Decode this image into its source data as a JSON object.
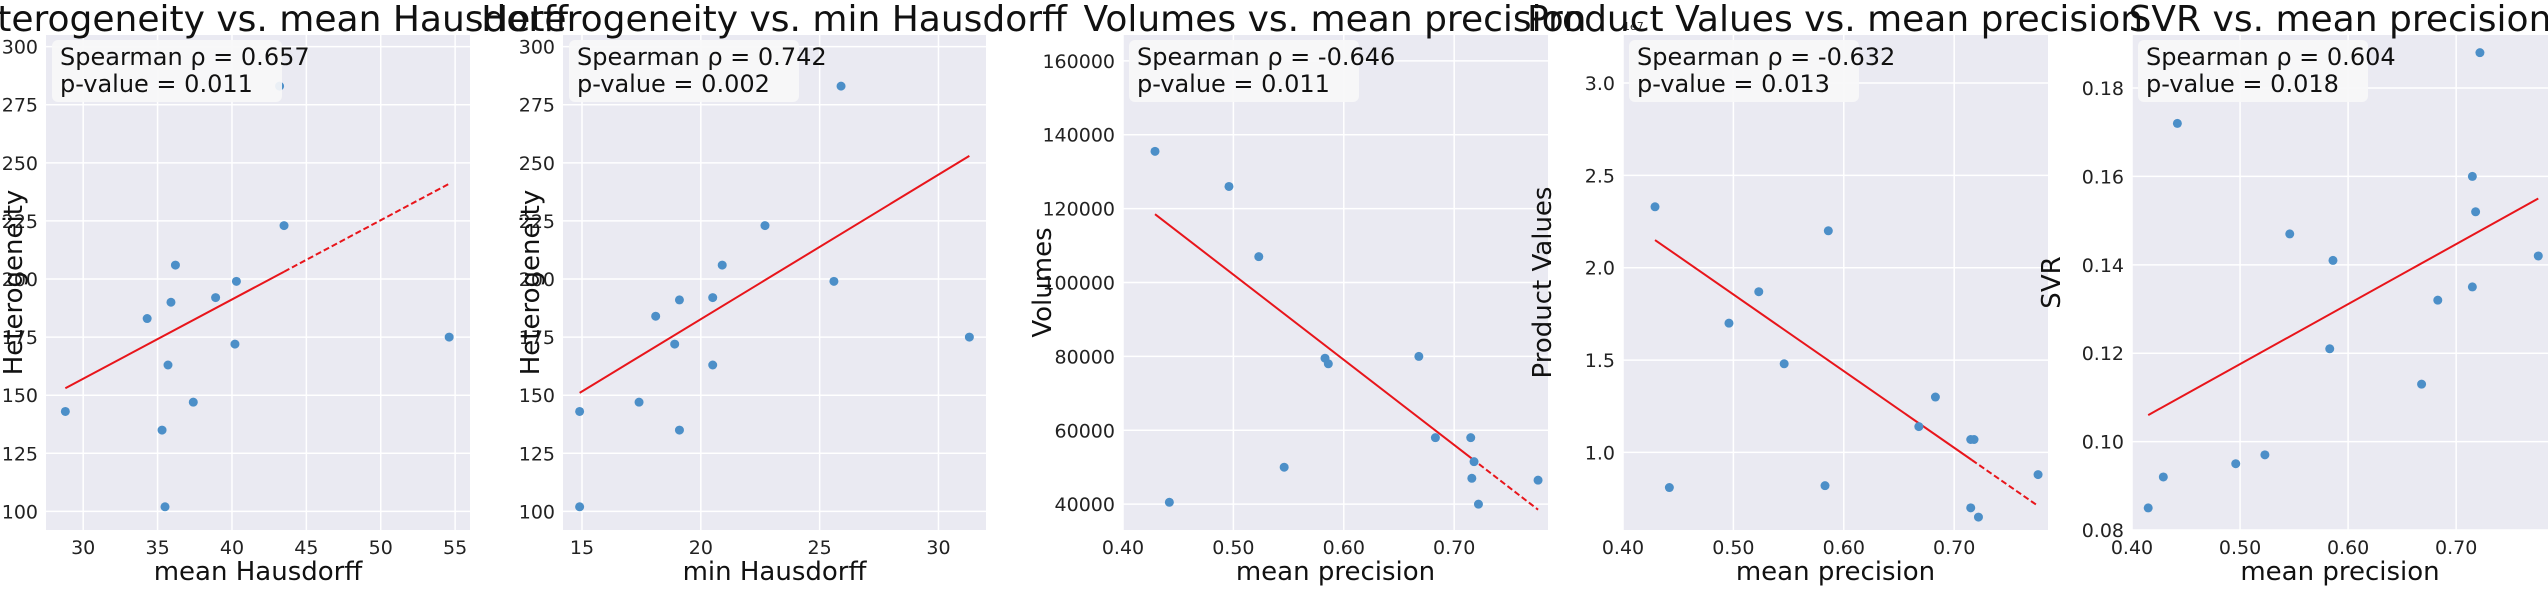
{
  "chart_data": [
    {
      "type": "scatter",
      "title": "Heterogeneity vs. mean Hausdorff",
      "xlabel": "mean Hausdorff",
      "ylabel": "Heterogeneity",
      "annotation": [
        "Spearman ρ = 0.657",
        "p-value = 0.011"
      ],
      "xlim": [
        27.5,
        56
      ],
      "ylim": [
        92,
        305
      ],
      "xticks": [
        30,
        35,
        40,
        45,
        50,
        55
      ],
      "yticks": [
        100,
        125,
        150,
        175,
        200,
        225,
        250,
        275,
        300
      ],
      "points": [
        [
          28.8,
          143
        ],
        [
          34.3,
          183
        ],
        [
          35.3,
          135
        ],
        [
          35.5,
          102
        ],
        [
          35.7,
          163
        ],
        [
          35.9,
          190
        ],
        [
          36.2,
          206
        ],
        [
          37.4,
          147
        ],
        [
          38.9,
          192
        ],
        [
          40.2,
          172
        ],
        [
          40.3,
          199
        ],
        [
          43.5,
          223
        ],
        [
          54.6,
          175
        ],
        [
          43.2,
          283
        ]
      ],
      "trend": [
        [
          28.8,
          153
        ],
        [
          54.6,
          241
        ]
      ],
      "trend_solid_to": 43.5
    },
    {
      "type": "scatter",
      "title": "Heterogeneity vs. min Hausdorff",
      "xlabel": "min Hausdorff",
      "ylabel": "Heterogeneity",
      "annotation": [
        "Spearman ρ = 0.742",
        "p-value = 0.002"
      ],
      "xlim": [
        14.2,
        32
      ],
      "ylim": [
        92,
        305
      ],
      "xticks": [
        15,
        20,
        25,
        30
      ],
      "yticks": [
        100,
        125,
        150,
        175,
        200,
        225,
        250,
        275,
        300
      ],
      "points": [
        [
          14.9,
          143
        ],
        [
          14.9,
          102
        ],
        [
          17.4,
          147
        ],
        [
          18.1,
          184
        ],
        [
          18.9,
          172
        ],
        [
          19.1,
          191
        ],
        [
          19.1,
          135
        ],
        [
          20.5,
          163
        ],
        [
          20.5,
          192
        ],
        [
          20.9,
          206
        ],
        [
          22.7,
          223
        ],
        [
          25.6,
          199
        ],
        [
          25.9,
          283
        ],
        [
          31.3,
          175
        ]
      ],
      "trend": [
        [
          14.9,
          151
        ],
        [
          31.3,
          253
        ]
      ],
      "trend_solid_to": 31.3
    },
    {
      "type": "scatter",
      "title": "Volumes vs. mean precision",
      "xlabel": "mean precision",
      "ylabel": "Volumes",
      "annotation": [
        "Spearman ρ = -0.646",
        "p-value = 0.011"
      ],
      "xlim": [
        0.4,
        0.785
      ],
      "ylim": [
        33000,
        167000
      ],
      "xticks": [
        0.4,
        0.5,
        0.6,
        0.7
      ],
      "yticks": [
        40000,
        60000,
        80000,
        100000,
        120000,
        140000,
        160000
      ],
      "points": [
        [
          0.429,
          135500
        ],
        [
          0.442,
          40500
        ],
        [
          0.496,
          126000
        ],
        [
          0.523,
          107000
        ],
        [
          0.546,
          50000
        ],
        [
          0.583,
          79500
        ],
        [
          0.586,
          78000
        ],
        [
          0.668,
          80000
        ],
        [
          0.683,
          58000
        ],
        [
          0.715,
          58000
        ],
        [
          0.716,
          47000
        ],
        [
          0.718,
          51500
        ],
        [
          0.722,
          40000
        ],
        [
          0.776,
          46500
        ]
      ],
      "trend": [
        [
          0.429,
          118500
        ],
        [
          0.776,
          38500
        ]
      ],
      "trend_solid_to": 0.716
    },
    {
      "type": "scatter",
      "title": "Product Values vs. mean precision",
      "xlabel": "mean precision",
      "ylabel": "Product Values",
      "exponent_label": "1e7",
      "annotation": [
        "Spearman ρ = -0.632",
        "p-value = 0.013"
      ],
      "xlim": [
        0.4,
        0.785
      ],
      "ylim": [
        0.58,
        3.26
      ],
      "xticks": [
        0.4,
        0.5,
        0.6,
        0.7
      ],
      "yticks": [
        1.0,
        1.5,
        2.0,
        2.5,
        3.0
      ],
      "points": [
        [
          0.429,
          2.33
        ],
        [
          0.442,
          0.81
        ],
        [
          0.496,
          1.7
        ],
        [
          0.523,
          1.87
        ],
        [
          0.546,
          1.48
        ],
        [
          0.583,
          0.82
        ],
        [
          0.586,
          2.2
        ],
        [
          0.668,
          1.14
        ],
        [
          0.683,
          1.3
        ],
        [
          0.715,
          1.07
        ],
        [
          0.718,
          1.07
        ],
        [
          0.715,
          0.7
        ],
        [
          0.722,
          0.65
        ],
        [
          0.776,
          0.88
        ]
      ],
      "trend": [
        [
          0.429,
          2.15
        ],
        [
          0.776,
          0.71
        ]
      ],
      "trend_solid_to": 0.716
    },
    {
      "type": "scatter",
      "title": "SVR vs. mean precision",
      "xlabel": "mean precision",
      "ylabel": "SVR",
      "annotation": [
        "Spearman ρ = 0.604",
        "p-value = 0.018"
      ],
      "xlim": [
        0.4,
        0.785
      ],
      "ylim": [
        0.08,
        0.192
      ],
      "xticks": [
        0.4,
        0.5,
        0.6,
        0.7
      ],
      "yticks": [
        0.08,
        0.1,
        0.12,
        0.14,
        0.16,
        0.18
      ],
      "points": [
        [
          0.415,
          0.085
        ],
        [
          0.429,
          0.092
        ],
        [
          0.442,
          0.172
        ],
        [
          0.496,
          0.095
        ],
        [
          0.523,
          0.097
        ],
        [
          0.546,
          0.147
        ],
        [
          0.583,
          0.121
        ],
        [
          0.586,
          0.141
        ],
        [
          0.668,
          0.113
        ],
        [
          0.683,
          0.132
        ],
        [
          0.715,
          0.135
        ],
        [
          0.715,
          0.16
        ],
        [
          0.718,
          0.152
        ],
        [
          0.722,
          0.188
        ],
        [
          0.776,
          0.142
        ]
      ],
      "trend": [
        [
          0.415,
          0.106
        ],
        [
          0.776,
          0.155
        ]
      ],
      "trend_solid_to": 0.776
    }
  ],
  "colors": {
    "panel_bg": "#eaeaf2",
    "grid": "#ffffff",
    "point": "#4c8fc8",
    "trend": "#e8151b",
    "annotation_box": "#f7f7f9"
  }
}
